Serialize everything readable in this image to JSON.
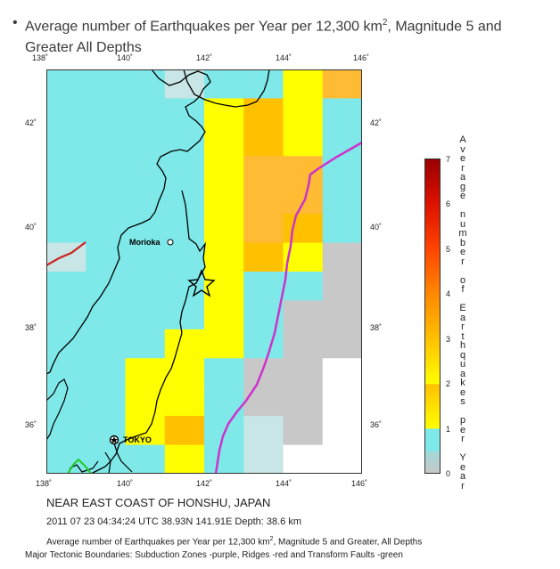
{
  "title": {
    "bullet": "•",
    "main": "Average number of Earthquakes per Year per 12,300 km",
    "sup": "2",
    "rest": ", Magnitude 5 and Greater All Depths"
  },
  "map": {
    "lon_range": [
      138,
      146
    ],
    "lat_range": [
      35,
      43
    ],
    "top_lon_ticks": [
      "138˚",
      "140˚",
      "142˚",
      "144˚",
      "146˚"
    ],
    "bottom_lon_ticks": [
      "138˚",
      "140˚",
      "142˚",
      "144˚",
      "146˚"
    ],
    "left_lat_ticks": [
      "42˚",
      "40˚",
      "38˚",
      "36˚"
    ],
    "right_lat_ticks": [
      "42˚",
      "40˚",
      "38˚",
      "36˚"
    ],
    "colors": {
      "ocean_cell": "#7fe8e8",
      "land_line": "#000000",
      "subduction": "#cc33cc",
      "ridge": "#cc2222",
      "transform": "#22cc22"
    },
    "grid_values": [
      [
        0.7,
        0.7,
        0.7,
        0.6,
        0.7,
        0.9,
        1.5,
        2.6
      ],
      [
        0.7,
        0.7,
        0.7,
        0.7,
        1.5,
        1.9,
        1.5,
        0.8
      ],
      [
        0.7,
        0.7,
        0.7,
        0.8,
        1.5,
        1.9,
        1.5,
        0.7
      ],
      [
        0.7,
        0.7,
        0.7,
        0.8,
        1.5,
        2.2,
        2.2,
        0.7
      ],
      [
        0.7,
        0.7,
        0.7,
        0.8,
        1.5,
        2.2,
        2.2,
        0.7
      ],
      [
        0.7,
        0.7,
        0.7,
        0.8,
        1.5,
        2.2,
        2.1,
        0.7
      ],
      [
        0.6,
        0.7,
        0.7,
        0.8,
        1.5,
        2.0,
        1.6,
        0.3
      ],
      [
        0.7,
        0.7,
        0.7,
        0.8,
        1.4,
        0.7,
        0.7,
        0.2
      ],
      [
        0.7,
        0.7,
        0.7,
        0.8,
        1.4,
        0.7,
        0.3,
        0.2
      ],
      [
        0.7,
        0.7,
        0.7,
        1.4,
        1.4,
        0.7,
        0.2,
        0.2
      ],
      [
        0.7,
        0.7,
        1.4,
        1.4,
        0.7,
        0.3,
        0.2,
        0.0
      ],
      [
        0.7,
        0.7,
        1.6,
        1.5,
        0.8,
        0.2,
        0.2,
        0.0
      ],
      [
        0.7,
        0.7,
        1.6,
        2.1,
        0.7,
        0.6,
        0.2,
        0.0
      ],
      [
        0.7,
        0.7,
        0.7,
        1.4,
        0.7,
        0.6,
        0.0,
        0.0
      ]
    ],
    "cities": [
      {
        "name": "Morioka",
        "lon": 141.15,
        "lat": 39.7
      },
      {
        "name": "TOKYO",
        "lon": 139.69,
        "lat": 35.69
      }
    ],
    "epicenter": {
      "lon": 141.91,
      "lat": 38.93
    }
  },
  "colorbar": {
    "ticks": [
      "0",
      "1",
      "2",
      "3",
      "4",
      "5",
      "6",
      "7"
    ],
    "title_letters": [
      "A",
      "v",
      "e",
      "r",
      "a",
      "g",
      "e",
      "",
      "n",
      "u",
      "m",
      "b",
      "e",
      "r",
      "",
      "o",
      "f",
      "",
      "E",
      "a",
      "r",
      "t",
      "h",
      "q",
      "u",
      "a",
      "k",
      "e",
      "s",
      "",
      "p",
      "e",
      "r",
      "",
      "Y",
      "e",
      "a",
      "r"
    ],
    "stops": [
      {
        "v": 0,
        "c": "#c8c8c8"
      },
      {
        "v": 1,
        "c": "#7fe8e8"
      },
      {
        "v": 1.0001,
        "c": "#ffff00"
      },
      {
        "v": 2,
        "c": "#ffc000"
      },
      {
        "v": 3,
        "c": "#ff9900"
      },
      {
        "v": 4,
        "c": "#ff6600"
      },
      {
        "v": 5,
        "c": "#ff3300"
      },
      {
        "v": 6,
        "c": "#e01000"
      },
      {
        "v": 7,
        "c": "#9a0000"
      }
    ]
  },
  "footer": {
    "region": "NEAR EAST COAST OF HONSHU, JAPAN",
    "event": "2011 07 23 04:34:24 UTC 38.93N 141.91E Depth: 38.6 km",
    "caption_main": "Average number of Earthquakes per Year per 12,300 km",
    "caption_sup": "2",
    "caption_rest": ", Magnitude 5 and Greater, All Depths",
    "boundaries": "Major Tectonic Boundaries: Subduction Zones -purple, Ridges -red and Transform Faults -green"
  }
}
